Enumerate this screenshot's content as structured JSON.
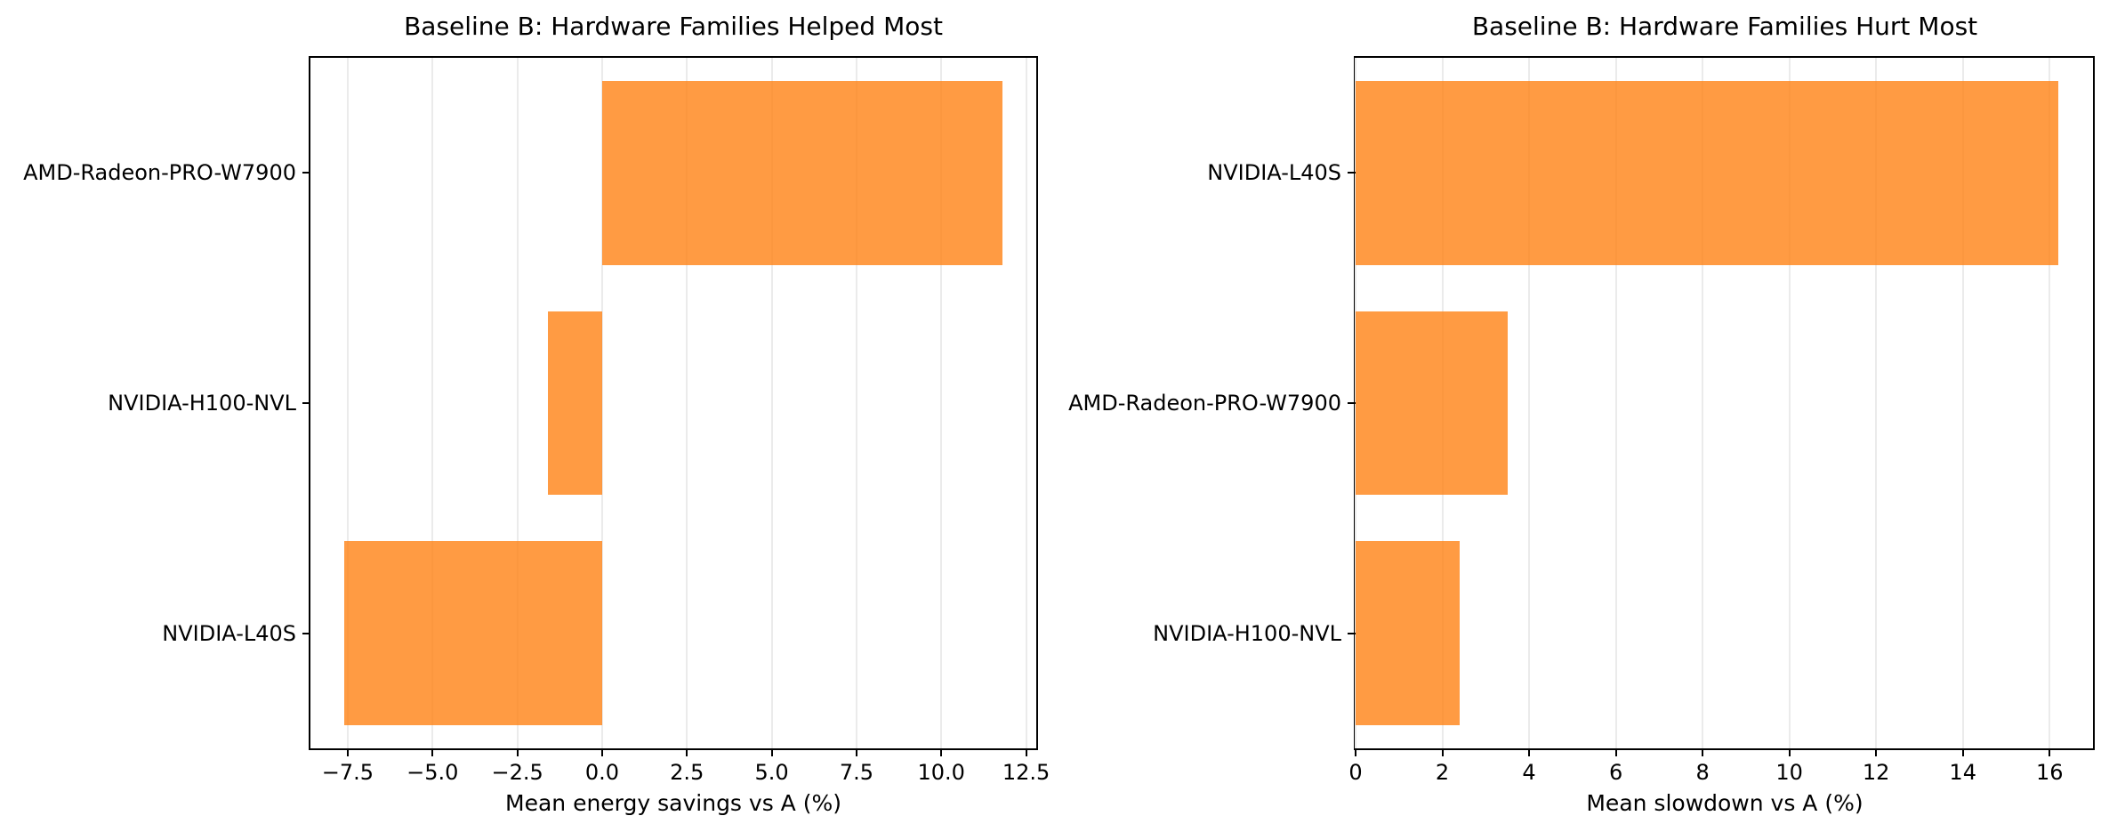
{
  "figure": {
    "background": "#ffffff",
    "bar_color": "#ff7f0e",
    "bar_opacity": 0.78,
    "grid_color": "#ebebeb",
    "spine_color": "#000000",
    "text_color": "#000000"
  },
  "chart_data": [
    {
      "type": "bar",
      "orientation": "horizontal",
      "title": "Baseline B: Hardware Families Helped Most",
      "xlabel": "Mean energy savings vs A (%)",
      "categories": [
        "AMD-Radeon-PRO-W7900",
        "NVIDIA-H100-NVL",
        "NVIDIA-L40S"
      ],
      "values": [
        11.8,
        -1.6,
        -7.6
      ],
      "xlim": [
        -8.6,
        12.8
      ],
      "xticks": [
        -7.5,
        -5,
        -2.5,
        0,
        2.5,
        5,
        7.5,
        10,
        12.5
      ],
      "xtick_labels": [
        "−7.5",
        "−5.0",
        "−2.5",
        "0.0",
        "2.5",
        "5.0",
        "7.5",
        "10.0",
        "12.5"
      ],
      "grid": true,
      "legend": null,
      "bar_height_fraction": 0.8
    },
    {
      "type": "bar",
      "orientation": "horizontal",
      "title": "Baseline B: Hardware Families Hurt Most",
      "xlabel": "Mean slowdown vs A (%)",
      "categories": [
        "NVIDIA-L40S",
        "AMD-Radeon-PRO-W7900",
        "NVIDIA-H100-NVL"
      ],
      "values": [
        16.2,
        3.5,
        2.4
      ],
      "xlim": [
        0,
        17
      ],
      "xticks": [
        0,
        2,
        4,
        6,
        8,
        10,
        12,
        14,
        16
      ],
      "xtick_labels": [
        "0",
        "2",
        "4",
        "6",
        "8",
        "10",
        "12",
        "14",
        "16"
      ],
      "grid": true,
      "legend": null,
      "bar_height_fraction": 0.8
    }
  ]
}
